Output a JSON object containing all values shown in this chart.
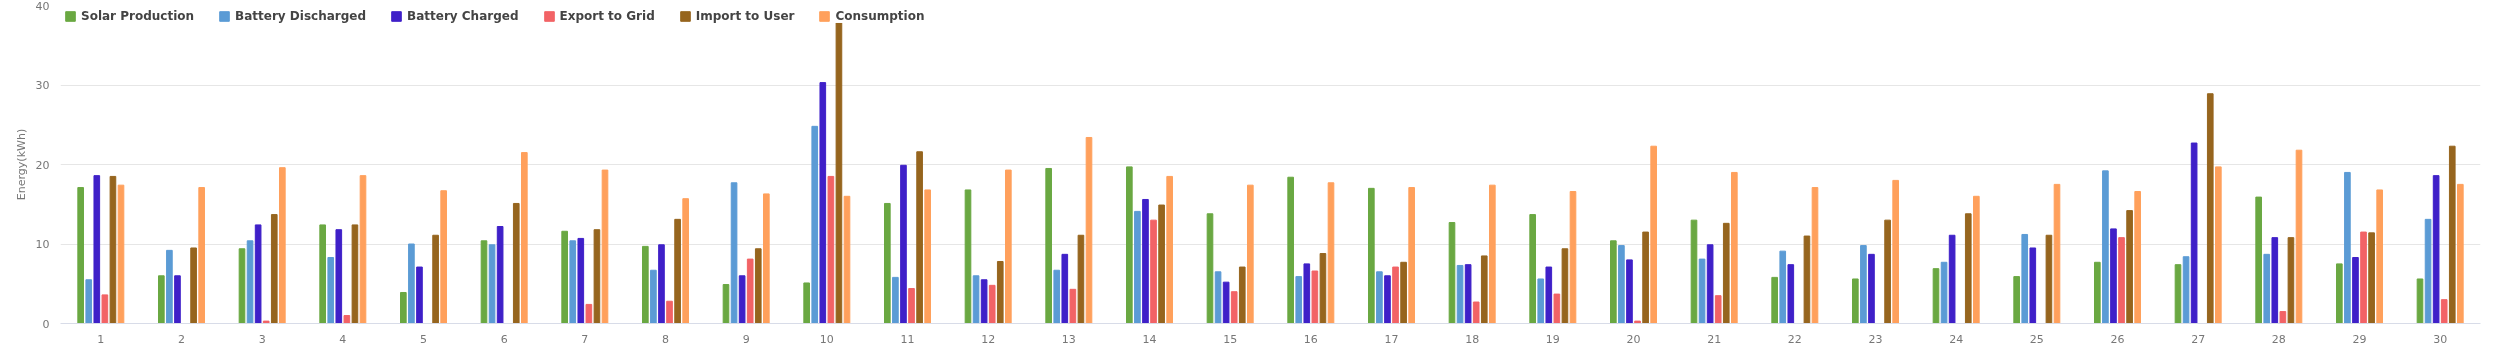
{
  "chart_data": {
    "type": "bar",
    "ylabel": "Energy(kWh)",
    "categories": [
      "1",
      "2",
      "3",
      "4",
      "5",
      "6",
      "7",
      "8",
      "9",
      "10",
      "11",
      "12",
      "13",
      "14",
      "15",
      "16",
      "17",
      "18",
      "19",
      "20",
      "21",
      "22",
      "23",
      "24",
      "25",
      "26",
      "27",
      "28",
      "29",
      "30"
    ],
    "series": [
      {
        "name": "Solar Production",
        "color": "#6aa842",
        "values": [
          17.1,
          6.0,
          9.4,
          12.4,
          3.9,
          10.4,
          11.6,
          9.7,
          4.9,
          5.1,
          15.1,
          16.8,
          19.5,
          19.7,
          13.8,
          18.4,
          17.0,
          12.7,
          13.7,
          10.4,
          13.0,
          5.8,
          5.6,
          6.9,
          5.9,
          7.7,
          7.4,
          15.9,
          7.5,
          5.6
        ]
      },
      {
        "name": "Battery Discharged",
        "color": "#5b9bd5",
        "values": [
          5.5,
          9.2,
          10.4,
          8.3,
          10.0,
          9.9,
          10.4,
          6.7,
          17.7,
          24.8,
          5.8,
          6.0,
          6.7,
          14.1,
          6.5,
          5.9,
          6.5,
          7.3,
          5.6,
          9.8,
          8.1,
          9.1,
          9.8,
          7.7,
          11.2,
          19.2,
          8.4,
          8.7,
          19.0,
          13.1
        ]
      },
      {
        "name": "Battery Charged",
        "color": "#3f20c8",
        "values": [
          18.6,
          6.0,
          12.4,
          11.8,
          7.1,
          12.2,
          10.7,
          9.9,
          6.0,
          30.3,
          19.9,
          5.5,
          8.7,
          15.6,
          5.2,
          7.5,
          6.0,
          7.4,
          7.1,
          8.0,
          9.9,
          7.4,
          8.7,
          11.1,
          9.5,
          11.9,
          22.7,
          10.8,
          8.3,
          18.6
        ]
      },
      {
        "name": "Export to Grid",
        "color": "#f26366",
        "values": [
          3.6,
          0,
          0.3,
          1.0,
          0,
          0,
          2.4,
          2.8,
          8.1,
          18.5,
          4.4,
          4.8,
          4.3,
          13.0,
          4.0,
          6.6,
          7.1,
          2.7,
          3.7,
          0.3,
          3.5,
          0,
          0,
          0,
          0,
          10.8,
          0,
          1.5,
          11.5,
          3.0
        ]
      },
      {
        "name": "Import to User",
        "color": "#96651e",
        "values": [
          18.5,
          9.5,
          13.7,
          12.4,
          11.1,
          15.1,
          11.8,
          13.1,
          9.4,
          37.8,
          21.6,
          7.8,
          11.1,
          14.9,
          7.1,
          8.8,
          7.7,
          8.5,
          9.4,
          11.5,
          12.6,
          11.0,
          13.0,
          13.8,
          11.1,
          14.2,
          28.9,
          10.8,
          11.4,
          22.3
        ]
      },
      {
        "name": "Consumption",
        "color": "#ffa05c",
        "values": [
          17.4,
          17.1,
          19.6,
          18.6,
          16.7,
          21.5,
          19.3,
          15.7,
          16.3,
          16.0,
          16.8,
          19.3,
          23.4,
          18.5,
          17.4,
          17.7,
          17.1,
          17.4,
          16.6,
          22.3,
          19.0,
          17.1,
          18.0,
          16.0,
          17.5,
          16.6,
          19.7,
          21.8,
          16.8,
          17.5
        ]
      }
    ],
    "ylim": [
      0,
      40
    ],
    "yticks": [
      0,
      10,
      20,
      30,
      40
    ],
    "grid": "y",
    "legend": "top left"
  }
}
